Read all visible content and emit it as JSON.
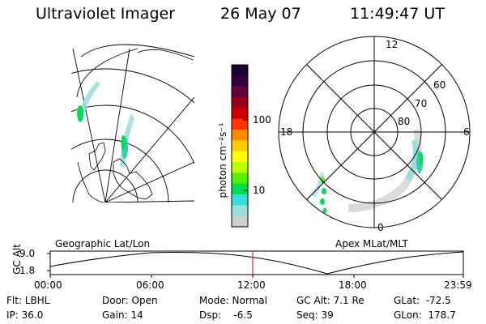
{
  "header": {
    "title": "Ultraviolet Imager",
    "date": "26 May 07",
    "time": "11:49:47 UT"
  },
  "colorbar": {
    "unit_label": "photon cm⁻²s⁻¹",
    "ticks": [
      "100",
      "10"
    ],
    "colors": [
      "#1a0033",
      "#330044",
      "#66003a",
      "#99001a",
      "#cc0000",
      "#ff3300",
      "#ff8800",
      "#ffcc00",
      "#ffff00",
      "#bbff00",
      "#55ee00",
      "#00dd55",
      "#33dddd",
      "#99dddd",
      "#cccccc"
    ]
  },
  "left_panel": {
    "caption": "Geographic Lat/Lon"
  },
  "right_panel": {
    "caption": "Apex MLat/MLT",
    "mlt_labels": {
      "top": "12",
      "left": "18",
      "right": "6",
      "bottom": "0"
    },
    "lat_labels": [
      "60",
      "70",
      "80"
    ]
  },
  "altitude_plot": {
    "ylabel": "GC Alt",
    "yticks": [
      "9.0",
      "1.8"
    ],
    "xticks": [
      "00:00",
      "06:00",
      "12:00",
      "18:00",
      "23:59"
    ]
  },
  "info": {
    "flt": "Flt: LBHL",
    "ip": "IP: 36.0",
    "door": "Door: Open",
    "gain": "Gain: 14",
    "mode": "Mode: Normal",
    "dsp": "Dsp:    -6.5",
    "gcalt": "GC Alt: 7.1 Re",
    "seq": "Seq: 39",
    "glat": "GLat:  -72.5",
    "glon": "GLon:  178.7"
  }
}
